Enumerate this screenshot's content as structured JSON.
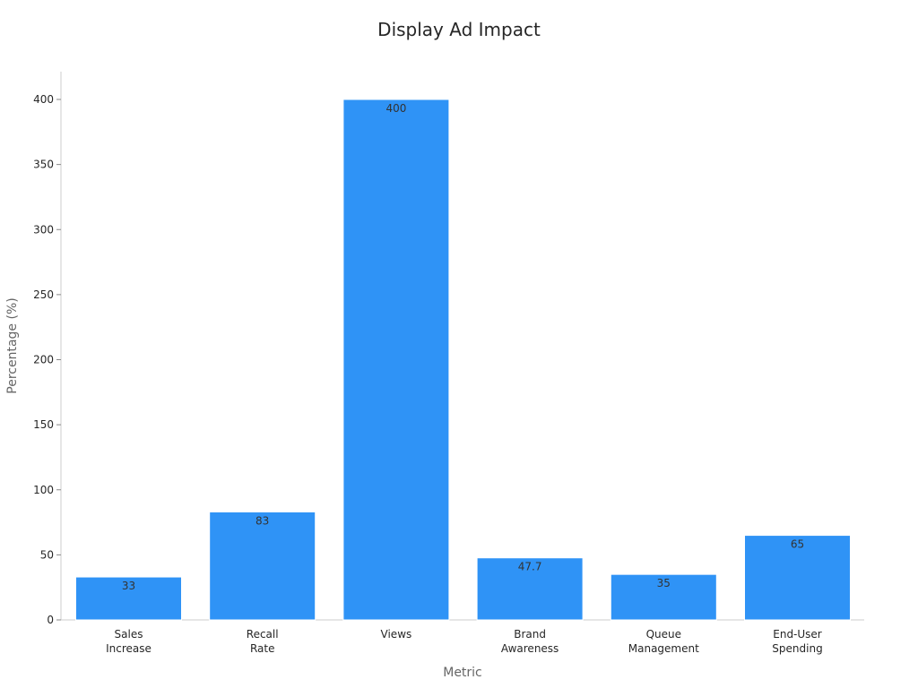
{
  "chart_data": {
    "type": "bar",
    "title": "Display Ad Impact",
    "xlabel": "Metric",
    "ylabel": "Percentage (%)",
    "categories": [
      [
        "Sales",
        "Increase"
      ],
      [
        "Recall",
        "Rate"
      ],
      [
        "Views"
      ],
      [
        "Brand",
        "Awareness"
      ],
      [
        "Queue",
        "Management"
      ],
      [
        "End-User",
        "Spending"
      ]
    ],
    "values": [
      33,
      83,
      400,
      47.7,
      35,
      65
    ],
    "value_labels": [
      "33",
      "83",
      "400",
      "47.7",
      "35",
      "65"
    ],
    "ylim": [
      0,
      420
    ],
    "yticks": [
      0,
      50,
      100,
      150,
      200,
      250,
      300,
      350,
      400
    ],
    "grid": false,
    "bar_color": "#2f93f6"
  }
}
